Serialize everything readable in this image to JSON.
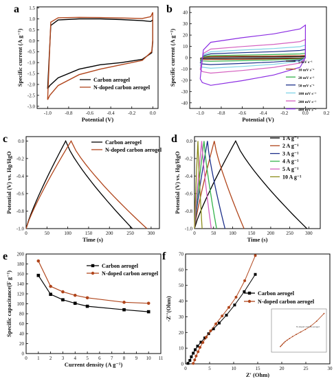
{
  "figure": {
    "panels": [
      "a",
      "b",
      "c",
      "d",
      "e",
      "f"
    ]
  },
  "chart_data": [
    {
      "id": "a",
      "type": "line",
      "letter": "a",
      "xlabel": "Potential (V)",
      "ylabel": "Specific current (A g⁻¹)",
      "xlim": [
        -1.1,
        0.05
      ],
      "ylim": [
        -3.1,
        1.55
      ],
      "xticks": [
        -1.0,
        -0.8,
        -0.6,
        -0.4,
        -0.2,
        0.0
      ],
      "xtick_labels": [
        "-1.0",
        "-0.8",
        "-0.6",
        "-0.4",
        "-0.2",
        "0.0"
      ],
      "yticks": [
        1.5,
        1.0,
        0.5,
        0.0,
        -0.5,
        -1.0,
        -1.5,
        -2.0,
        -2.5,
        -3.0
      ],
      "ytick_labels": [
        "1.5",
        "1.0",
        "0.5",
        "0.0",
        "-0.5",
        "-1.0",
        "-1.5",
        "-2.0",
        "-2.5",
        "-3.0"
      ],
      "legend_position": "center-right",
      "series": [
        {
          "name": "Carbon aerogel",
          "color": "#000000",
          "x": [
            -1.0,
            -0.97,
            -0.9,
            -0.7,
            -0.5,
            -0.3,
            -0.1,
            -0.02,
            0.0,
            0.0,
            -0.01,
            -0.1,
            -0.3,
            -0.5,
            -0.7,
            -0.9,
            -0.98,
            -1.0
          ],
          "y": [
            -2.2,
            0.7,
            0.95,
            1.0,
            1.0,
            0.97,
            0.92,
            0.88,
            0.95,
            -0.05,
            -0.55,
            -0.85,
            -1.0,
            -1.1,
            -1.3,
            -1.7,
            -2.05,
            -2.2
          ]
        },
        {
          "name": "N-doped carbon aerogel",
          "color": "#b0451b",
          "x": [
            -1.0,
            -0.97,
            -0.9,
            -0.7,
            -0.5,
            -0.3,
            -0.1,
            -0.02,
            0.0,
            0.0,
            -0.01,
            -0.1,
            -0.3,
            -0.5,
            -0.7,
            -0.9,
            -0.98,
            -1.0
          ],
          "y": [
            -2.7,
            0.85,
            1.05,
            1.07,
            1.06,
            1.04,
            1.02,
            1.1,
            1.3,
            0.05,
            -0.5,
            -0.9,
            -1.1,
            -1.3,
            -1.55,
            -2.05,
            -2.5,
            -2.7
          ]
        }
      ]
    },
    {
      "id": "b",
      "type": "line",
      "letter": "b",
      "xlabel": "Potential (V)",
      "ylabel": "Specific current (A g⁻¹)",
      "xlim": [
        -1.1,
        0.2
      ],
      "ylim": [
        -45,
        45
      ],
      "xticks": [
        -1.0,
        -0.8,
        -0.6,
        -0.4,
        -0.2,
        0.0,
        0.2
      ],
      "xtick_labels": [
        "-1.0",
        "-0.8",
        "-0.6",
        "-0.4",
        "-0.2",
        "0.0",
        "0.2"
      ],
      "yticks": [
        40,
        30,
        20,
        10,
        0,
        -10,
        -20,
        -30,
        -40
      ],
      "ytick_labels": [
        "40",
        "30",
        "20",
        "10",
        "0",
        "-10",
        "-20",
        "-30",
        "-40"
      ],
      "legend_position": "bottom-right",
      "series": [
        {
          "name": "5 mV s⁻¹",
          "color": "#000000",
          "scale": 1.2
        },
        {
          "name": "10 mV s⁻¹",
          "color": "#b0451b",
          "scale": 2.4
        },
        {
          "name": "20 mV s⁻¹",
          "color": "#33b24a",
          "scale": 4.5
        },
        {
          "name": "50 mV s⁻¹",
          "color": "#1c2f8a",
          "scale": 8.5
        },
        {
          "name": "100 mV s⁻¹",
          "color": "#7fd3e6",
          "scale": 13
        },
        {
          "name": "200 mV s⁻¹",
          "color": "#d45fbf",
          "scale": 19
        },
        {
          "name": "400 mV s⁻¹",
          "color": "#8a2be2",
          "scale": 34
        }
      ]
    },
    {
      "id": "c",
      "type": "line",
      "letter": "c",
      "xlabel": "Time (s)",
      "ylabel": "Potential (V) vs. Hg/HgO",
      "xlim": [
        0,
        320
      ],
      "ylim": [
        -1.0,
        0.05
      ],
      "xticks": [
        0,
        50,
        100,
        150,
        200,
        250,
        300
      ],
      "xtick_labels": [
        "0",
        "50",
        "100",
        "150",
        "200",
        "250",
        "300"
      ],
      "yticks": [
        0.0,
        -0.2,
        -0.4,
        -0.6,
        -0.8,
        -1.0
      ],
      "ytick_labels": [
        "0.0",
        "-0.2",
        "-0.4",
        "-0.6",
        "-0.8",
        "-1.0"
      ],
      "legend_position": "top-right",
      "series": [
        {
          "name": "Carbon aerogel",
          "color": "#000000",
          "peak": 95,
          "end": 255
        },
        {
          "name": "N-doped carbon aerogel",
          "color": "#b0451b",
          "peak": 108,
          "end": 290
        }
      ]
    },
    {
      "id": "d",
      "type": "line",
      "letter": "d",
      "xlabel": "Time (s)",
      "ylabel": "Potential (V) vs. Hg/HgO",
      "xlim": [
        0,
        330
      ],
      "ylim": [
        -1.0,
        0.05
      ],
      "xticks": [
        0,
        50,
        100,
        150,
        200,
        250,
        300
      ],
      "xtick_labels": [
        "0",
        "50",
        "100",
        "150",
        "200",
        "250",
        "300"
      ],
      "yticks": [
        0.0,
        -0.2,
        -0.4,
        -0.6,
        -0.8,
        -1.0
      ],
      "ytick_labels": [
        "0.0",
        "-0.2",
        "-0.4",
        "-0.6",
        "-0.8",
        "-1.0"
      ],
      "legend_position": "top-right",
      "series": [
        {
          "name": "1 A g⁻¹",
          "color": "#000000",
          "peak": 108,
          "end": 295
        },
        {
          "name": "2 A g⁻¹",
          "color": "#b0451b",
          "peak": 52,
          "end": 130
        },
        {
          "name": "3 A g⁻¹",
          "color": "#1c2f8a",
          "peak": 34,
          "end": 80
        },
        {
          "name": "4 A g⁻¹",
          "color": "#33b24a",
          "peak": 25,
          "end": 58
        },
        {
          "name": "5 A g⁻¹",
          "color": "#d45fbf",
          "peak": 19,
          "end": 44
        },
        {
          "name": "10 A g⁻¹",
          "color": "#8c8c1a",
          "peak": 9,
          "end": 20
        }
      ]
    },
    {
      "id": "e",
      "type": "line",
      "letter": "e",
      "xlabel": "Current density (A g⁻¹)",
      "ylabel": "Specific capacitance(F g⁻¹)",
      "xlim": [
        0,
        11
      ],
      "ylim": [
        0,
        200
      ],
      "xticks": [
        0,
        1,
        2,
        3,
        4,
        5,
        6,
        7,
        8,
        9,
        10,
        11
      ],
      "xtick_labels": [
        "0",
        "1",
        "2",
        "3",
        "4",
        "5",
        "6",
        "7",
        "8",
        "9",
        "10",
        "11"
      ],
      "yticks": [
        0,
        20,
        40,
        60,
        80,
        100,
        120,
        140,
        160,
        180,
        200
      ],
      "ytick_labels": [
        "0",
        "20",
        "40",
        "60",
        "80",
        "100",
        "120",
        "140",
        "160",
        "180",
        "200"
      ],
      "legend_position": "top-right",
      "series": [
        {
          "name": "Carbon aerogel",
          "color": "#000000",
          "marker": "square",
          "x": [
            1,
            2,
            3,
            4,
            5,
            8,
            10
          ],
          "y": [
            157,
            119,
            108,
            101,
            95,
            88,
            84
          ]
        },
        {
          "name": "N-doped carbon aerogel",
          "color": "#b0451b",
          "marker": "circle",
          "x": [
            1,
            2,
            3,
            4,
            5,
            8,
            10
          ],
          "y": [
            186,
            135,
            124,
            117,
            112,
            103,
            101
          ]
        }
      ]
    },
    {
      "id": "f",
      "type": "scatter",
      "letter": "f",
      "xlabel": "Z' (Ohm)",
      "ylabel": "-Z''(Ohm)",
      "xlim": [
        0,
        30
      ],
      "ylim": [
        0,
        70
      ],
      "xticks": [
        0,
        5,
        10,
        15,
        20,
        25,
        30
      ],
      "xtick_labels": [
        "0",
        "5",
        "10",
        "15",
        "20",
        "25",
        "30"
      ],
      "yticks": [
        0,
        10,
        20,
        30,
        40,
        50,
        60,
        70
      ],
      "ytick_labels": [
        "0",
        "10",
        "20",
        "30",
        "40",
        "50",
        "60",
        "70"
      ],
      "legend_position": "center-right",
      "inset_label": "N-doped carbon aerogel",
      "series": [
        {
          "name": "Carbon aerogel",
          "color": "#000000",
          "marker": "square",
          "x": [
            0.5,
            0.9,
            1.2,
            1.6,
            2.0,
            2.5,
            3.2,
            4.0,
            4.8,
            5.8,
            7.0,
            8.5,
            10.2,
            12.2,
            14.5
          ],
          "y": [
            0.3,
            2.2,
            4.5,
            6.8,
            9.0,
            11.3,
            13.8,
            16.5,
            19.2,
            22.3,
            26.0,
            31.0,
            37.5,
            46.0,
            57.0
          ]
        },
        {
          "name": "N-doped carbon aerogel",
          "color": "#b0451b",
          "marker": "circle",
          "x": [
            1.6,
            1.9,
            2.2,
            2.6,
            3.0,
            3.6,
            4.3,
            5.2,
            6.3,
            7.6,
            9.0,
            10.5,
            12.3,
            14.5
          ],
          "y": [
            0.3,
            2.5,
            5.0,
            7.7,
            10.5,
            13.6,
            17.0,
            21.0,
            25.5,
            30.5,
            36.0,
            42.5,
            53.0,
            69.0
          ]
        }
      ]
    }
  ]
}
